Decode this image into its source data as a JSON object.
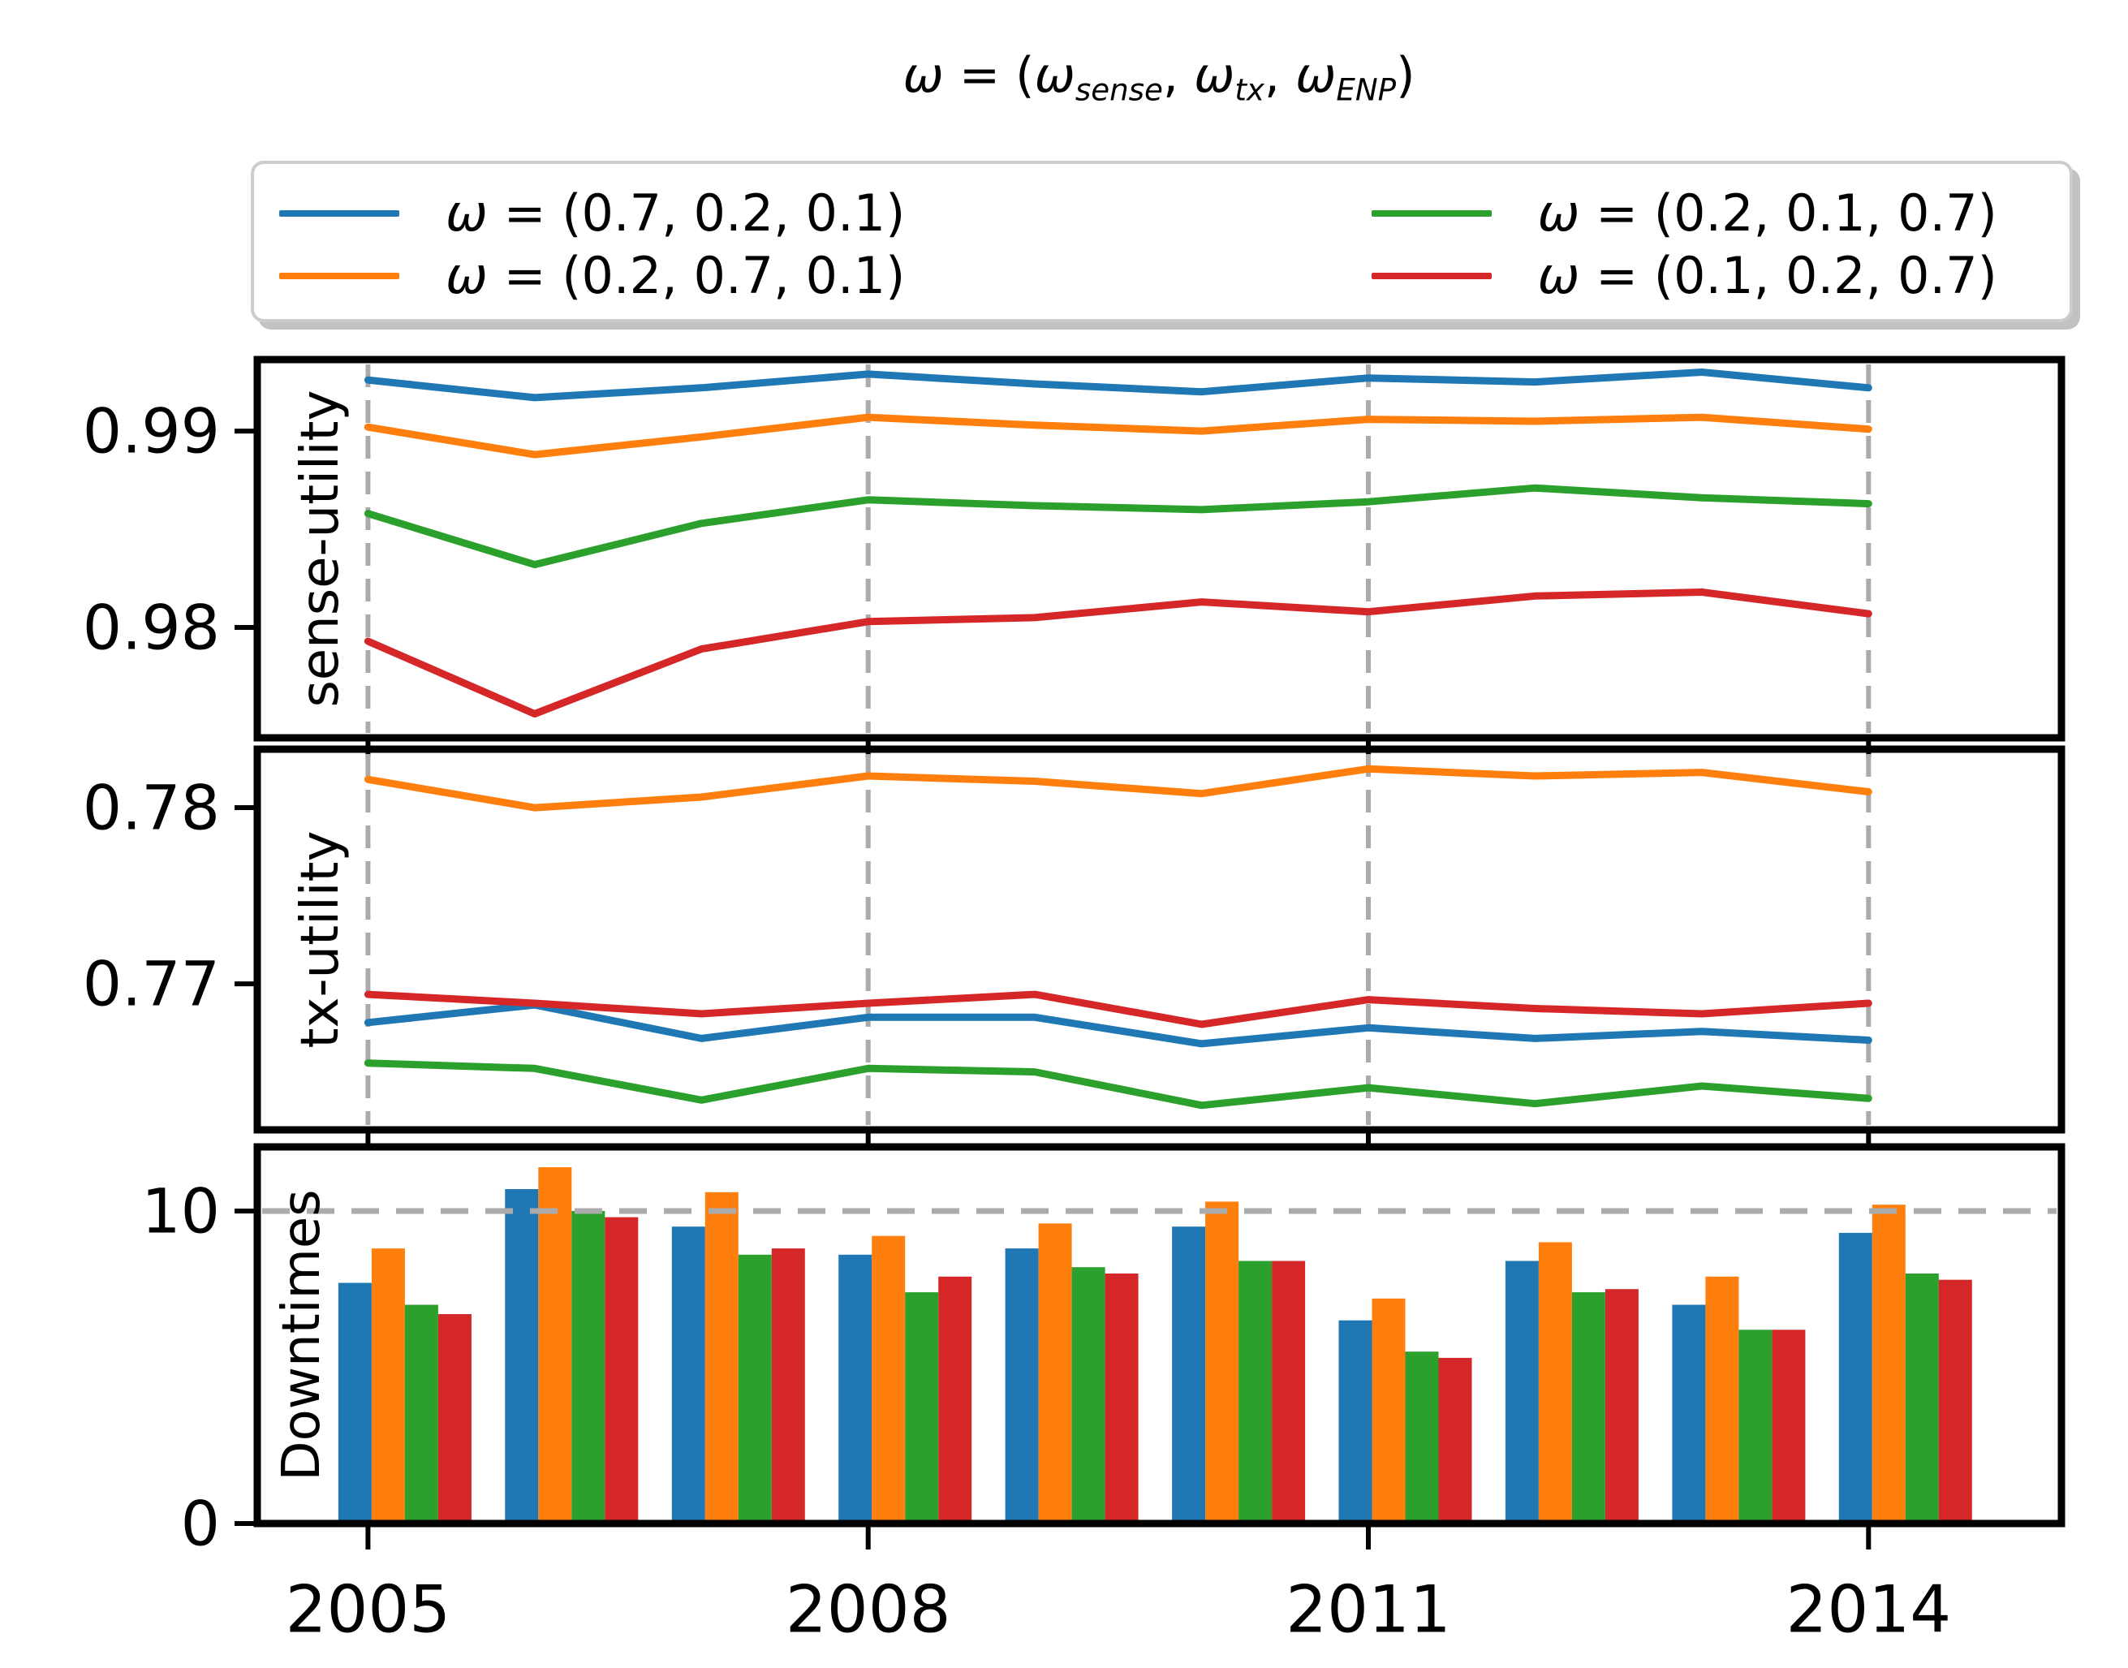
{
  "title": {
    "segments": [
      {
        "t": "ω",
        "i": 1
      },
      {
        "t": " = ("
      },
      {
        "t": "ω",
        "i": 1
      },
      {
        "t": "sense",
        "i": 1,
        "sub": 1
      },
      {
        "t": ", "
      },
      {
        "t": "ω",
        "i": 1
      },
      {
        "t": "tx",
        "i": 1,
        "sub": 1
      },
      {
        "t": ", "
      },
      {
        "t": "ω",
        "i": 1
      },
      {
        "t": "ENP",
        "i": 1,
        "sub": 1
      },
      {
        "t": ")"
      }
    ]
  },
  "legend": {
    "items": [
      {
        "omega": "ω",
        "rest": " = (0.7, 0.2, 0.1)",
        "color": "#1f77b4",
        "id": "blue"
      },
      {
        "omega": "ω",
        "rest": " = (0.2, 0.7, 0.1)",
        "color": "#ff7f0e",
        "id": "orange"
      },
      {
        "omega": "ω",
        "rest": " = (0.2, 0.1, 0.7)",
        "color": "#2ca02c",
        "id": "green"
      },
      {
        "omega": "ω",
        "rest": " = (0.1, 0.2, 0.7)",
        "color": "#d62728",
        "id": "red"
      }
    ]
  },
  "colors": {
    "grid": "#ababab",
    "axis": "#000000",
    "background": "#ffffff",
    "blue": "#1f77b4",
    "orange": "#ff7f0e",
    "green": "#2ca02c",
    "red": "#d62728"
  },
  "years": [
    2005,
    2006,
    2007,
    2008,
    2009,
    2010,
    2011,
    2012,
    2013,
    2014
  ],
  "xticks": [
    {
      "label": "2005",
      "value": 2005
    },
    {
      "label": "2008",
      "value": 2008
    },
    {
      "label": "2011",
      "value": 2011
    },
    {
      "label": "2014",
      "value": 2014
    }
  ],
  "chart_data": [
    {
      "type": "line",
      "ylabel": "sense-utility",
      "ylim": [
        0.97438,
        0.99364
      ],
      "yticks": [
        {
          "label": "0.99",
          "value": 0.99
        },
        {
          "label": "0.98",
          "value": 0.98
        }
      ],
      "vgrid": [
        2005,
        2008,
        2011,
        2014
      ],
      "grid": "vertical-dashed",
      "legend_position": "above-figure",
      "x": [
        2005,
        2006,
        2007,
        2008,
        2009,
        2010,
        2011,
        2012,
        2013,
        2014
      ],
      "series": [
        {
          "id": "blue",
          "name": "ω = (0.7, 0.2, 0.1)",
          "color": "#1f77b4",
          "values": [
            0.9926,
            0.9917,
            0.9922,
            0.9929,
            0.9924,
            0.992,
            0.9927,
            0.9925,
            0.993,
            0.9922
          ]
        },
        {
          "id": "orange",
          "name": "ω = (0.2, 0.7, 0.1)",
          "color": "#ff7f0e",
          "values": [
            0.9902,
            0.9888,
            0.9897,
            0.9907,
            0.9903,
            0.99,
            0.9906,
            0.9905,
            0.9907,
            0.9901
          ]
        },
        {
          "id": "green",
          "name": "ω = (0.2, 0.1, 0.7)",
          "color": "#2ca02c",
          "values": [
            0.9858,
            0.9832,
            0.9853,
            0.9865,
            0.9862,
            0.986,
            0.9864,
            0.9871,
            0.9866,
            0.9863
          ]
        },
        {
          "id": "red",
          "name": "ω = (0.1, 0.2, 0.7)",
          "color": "#d62728",
          "values": [
            0.9793,
            0.9756,
            0.9789,
            0.9803,
            0.9805,
            0.9813,
            0.9808,
            0.9816,
            0.9818,
            0.9807
          ]
        }
      ]
    },
    {
      "type": "line",
      "ylabel": "tx-utility",
      "ylim": [
        0.76171,
        0.78332
      ],
      "yticks": [
        {
          "label": "0.78",
          "value": 0.78
        },
        {
          "label": "0.77",
          "value": 0.77
        }
      ],
      "vgrid": [
        2005,
        2008,
        2011,
        2014
      ],
      "grid": "vertical-dashed",
      "x": [
        2005,
        2006,
        2007,
        2008,
        2009,
        2010,
        2011,
        2012,
        2013,
        2014
      ],
      "series": [
        {
          "id": "blue",
          "name": "ω = (0.7, 0.2, 0.1)",
          "color": "#1f77b4",
          "values": [
            0.7678,
            0.7688,
            0.7669,
            0.7681,
            0.7681,
            0.7666,
            0.7675,
            0.7669,
            0.7673,
            0.7668
          ]
        },
        {
          "id": "orange",
          "name": "ω = (0.2, 0.7, 0.1)",
          "color": "#ff7f0e",
          "values": [
            0.7816,
            0.78,
            0.7806,
            0.7818,
            0.7815,
            0.7808,
            0.7822,
            0.7818,
            0.782,
            0.7809
          ]
        },
        {
          "id": "green",
          "name": "ω = (0.2, 0.1, 0.7)",
          "color": "#2ca02c",
          "values": [
            0.7655,
            0.7652,
            0.7634,
            0.7652,
            0.765,
            0.7631,
            0.7641,
            0.7632,
            0.7642,
            0.7635
          ]
        },
        {
          "id": "red",
          "name": "ω = (0.1, 0.2, 0.7)",
          "color": "#d62728",
          "values": [
            0.7694,
            0.7689,
            0.7683,
            0.7689,
            0.7694,
            0.7677,
            0.7691,
            0.7686,
            0.7683,
            0.7689
          ]
        }
      ]
    },
    {
      "type": "bar",
      "ylabel": "Downtimes",
      "ylim": [
        0,
        12.05
      ],
      "yticks": [
        {
          "label": "10",
          "value": 10
        },
        {
          "label": "0",
          "value": 0
        }
      ],
      "hgrid": [
        10
      ],
      "grid": "horizontal-dashed-at-10",
      "x": [
        2005,
        2006,
        2007,
        2008,
        2009,
        2010,
        2011,
        2012,
        2013,
        2014
      ],
      "series": [
        {
          "id": "blue",
          "name": "ω = (0.7, 0.2, 0.1)",
          "color": "#1f77b4",
          "values": [
            7.7,
            10.7,
            9.5,
            8.6,
            8.8,
            9.5,
            6.5,
            8.4,
            7.0,
            9.3
          ]
        },
        {
          "id": "orange",
          "name": "ω = (0.2, 0.7, 0.1)",
          "color": "#ff7f0e",
          "values": [
            8.8,
            11.4,
            10.6,
            9.2,
            9.6,
            10.3,
            7.2,
            9.0,
            7.9,
            10.2
          ]
        },
        {
          "id": "green",
          "name": "ω = (0.2, 0.1, 0.7)",
          "color": "#2ca02c",
          "values": [
            7.0,
            10.0,
            8.6,
            7.4,
            8.2,
            8.4,
            5.5,
            7.4,
            6.2,
            8.0
          ]
        },
        {
          "id": "red",
          "name": "ω = (0.1, 0.2, 0.7)",
          "color": "#d62728",
          "values": [
            6.7,
            9.8,
            8.8,
            7.9,
            8.0,
            8.4,
            5.3,
            7.5,
            6.2,
            7.8
          ]
        }
      ]
    }
  ]
}
